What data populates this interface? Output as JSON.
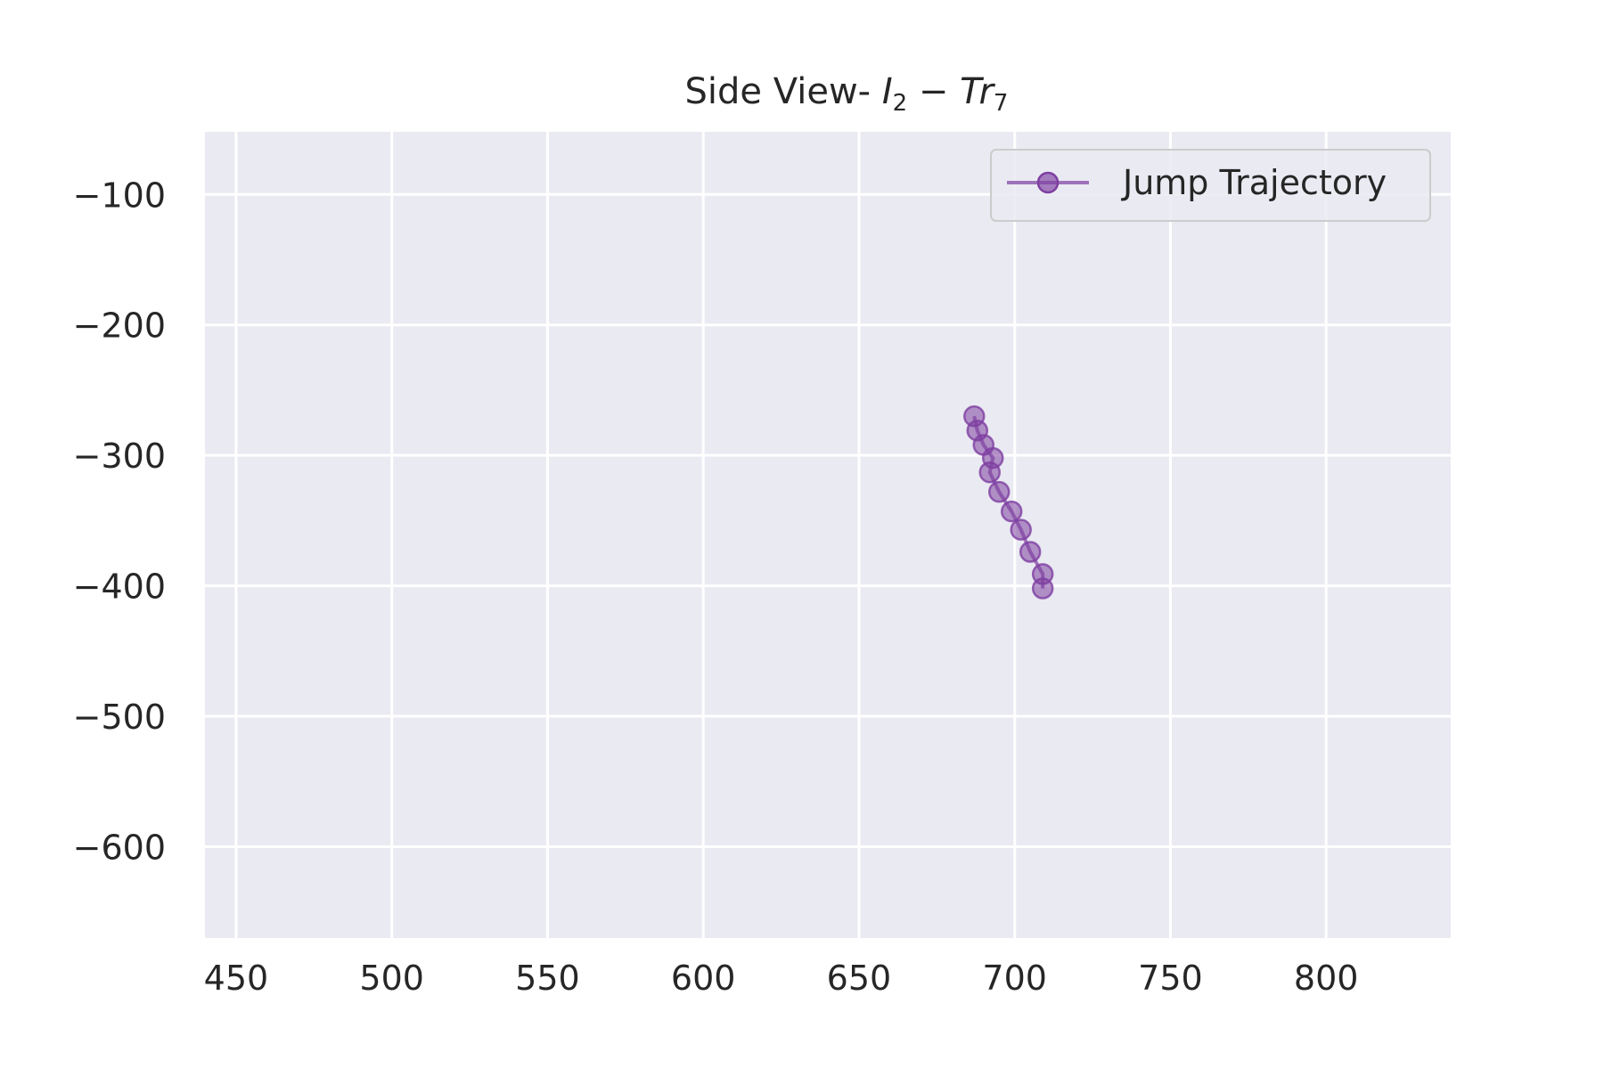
{
  "chart_data": {
    "type": "line",
    "title": "Side View- I₂ − Tr₇",
    "title_parts": {
      "prefix": "Side View- ",
      "var1": "I",
      "sub1": "2",
      "op": " − ",
      "var2": "Tr",
      "sub2": "7"
    },
    "xlabel": "",
    "ylabel": "",
    "xlim": [
      440,
      840
    ],
    "ylim": [
      -670,
      -52
    ],
    "x_ticks": [
      450,
      500,
      550,
      600,
      650,
      700,
      750,
      800
    ],
    "y_ticks": [
      -100,
      -200,
      -300,
      -400,
      -500,
      -600
    ],
    "x_tick_labels": [
      "450",
      "500",
      "550",
      "600",
      "650",
      "700",
      "750",
      "800"
    ],
    "y_tick_labels": [
      "−100",
      "−200",
      "−300",
      "−400",
      "−500",
      "−600"
    ],
    "grid": true,
    "legend_position": "top-right",
    "series": [
      {
        "name": "Jump Trajectory",
        "color": "#7e3fa1",
        "marker": "circle",
        "points": [
          {
            "x": 687,
            "y": -270
          },
          {
            "x": 688,
            "y": -281
          },
          {
            "x": 690,
            "y": -292
          },
          {
            "x": 693,
            "y": -302
          },
          {
            "x": 692,
            "y": -313
          },
          {
            "x": 695,
            "y": -328
          },
          {
            "x": 699,
            "y": -343
          },
          {
            "x": 702,
            "y": -357
          },
          {
            "x": 705,
            "y": -374
          },
          {
            "x": 709,
            "y": -391
          },
          {
            "x": 709,
            "y": -402
          }
        ]
      }
    ]
  },
  "colors": {
    "plot_background": "#eaeaf2",
    "grid": "#ffffff",
    "series": "#7e3fa1",
    "text": "#262626",
    "legend_border": "#cccccc"
  }
}
